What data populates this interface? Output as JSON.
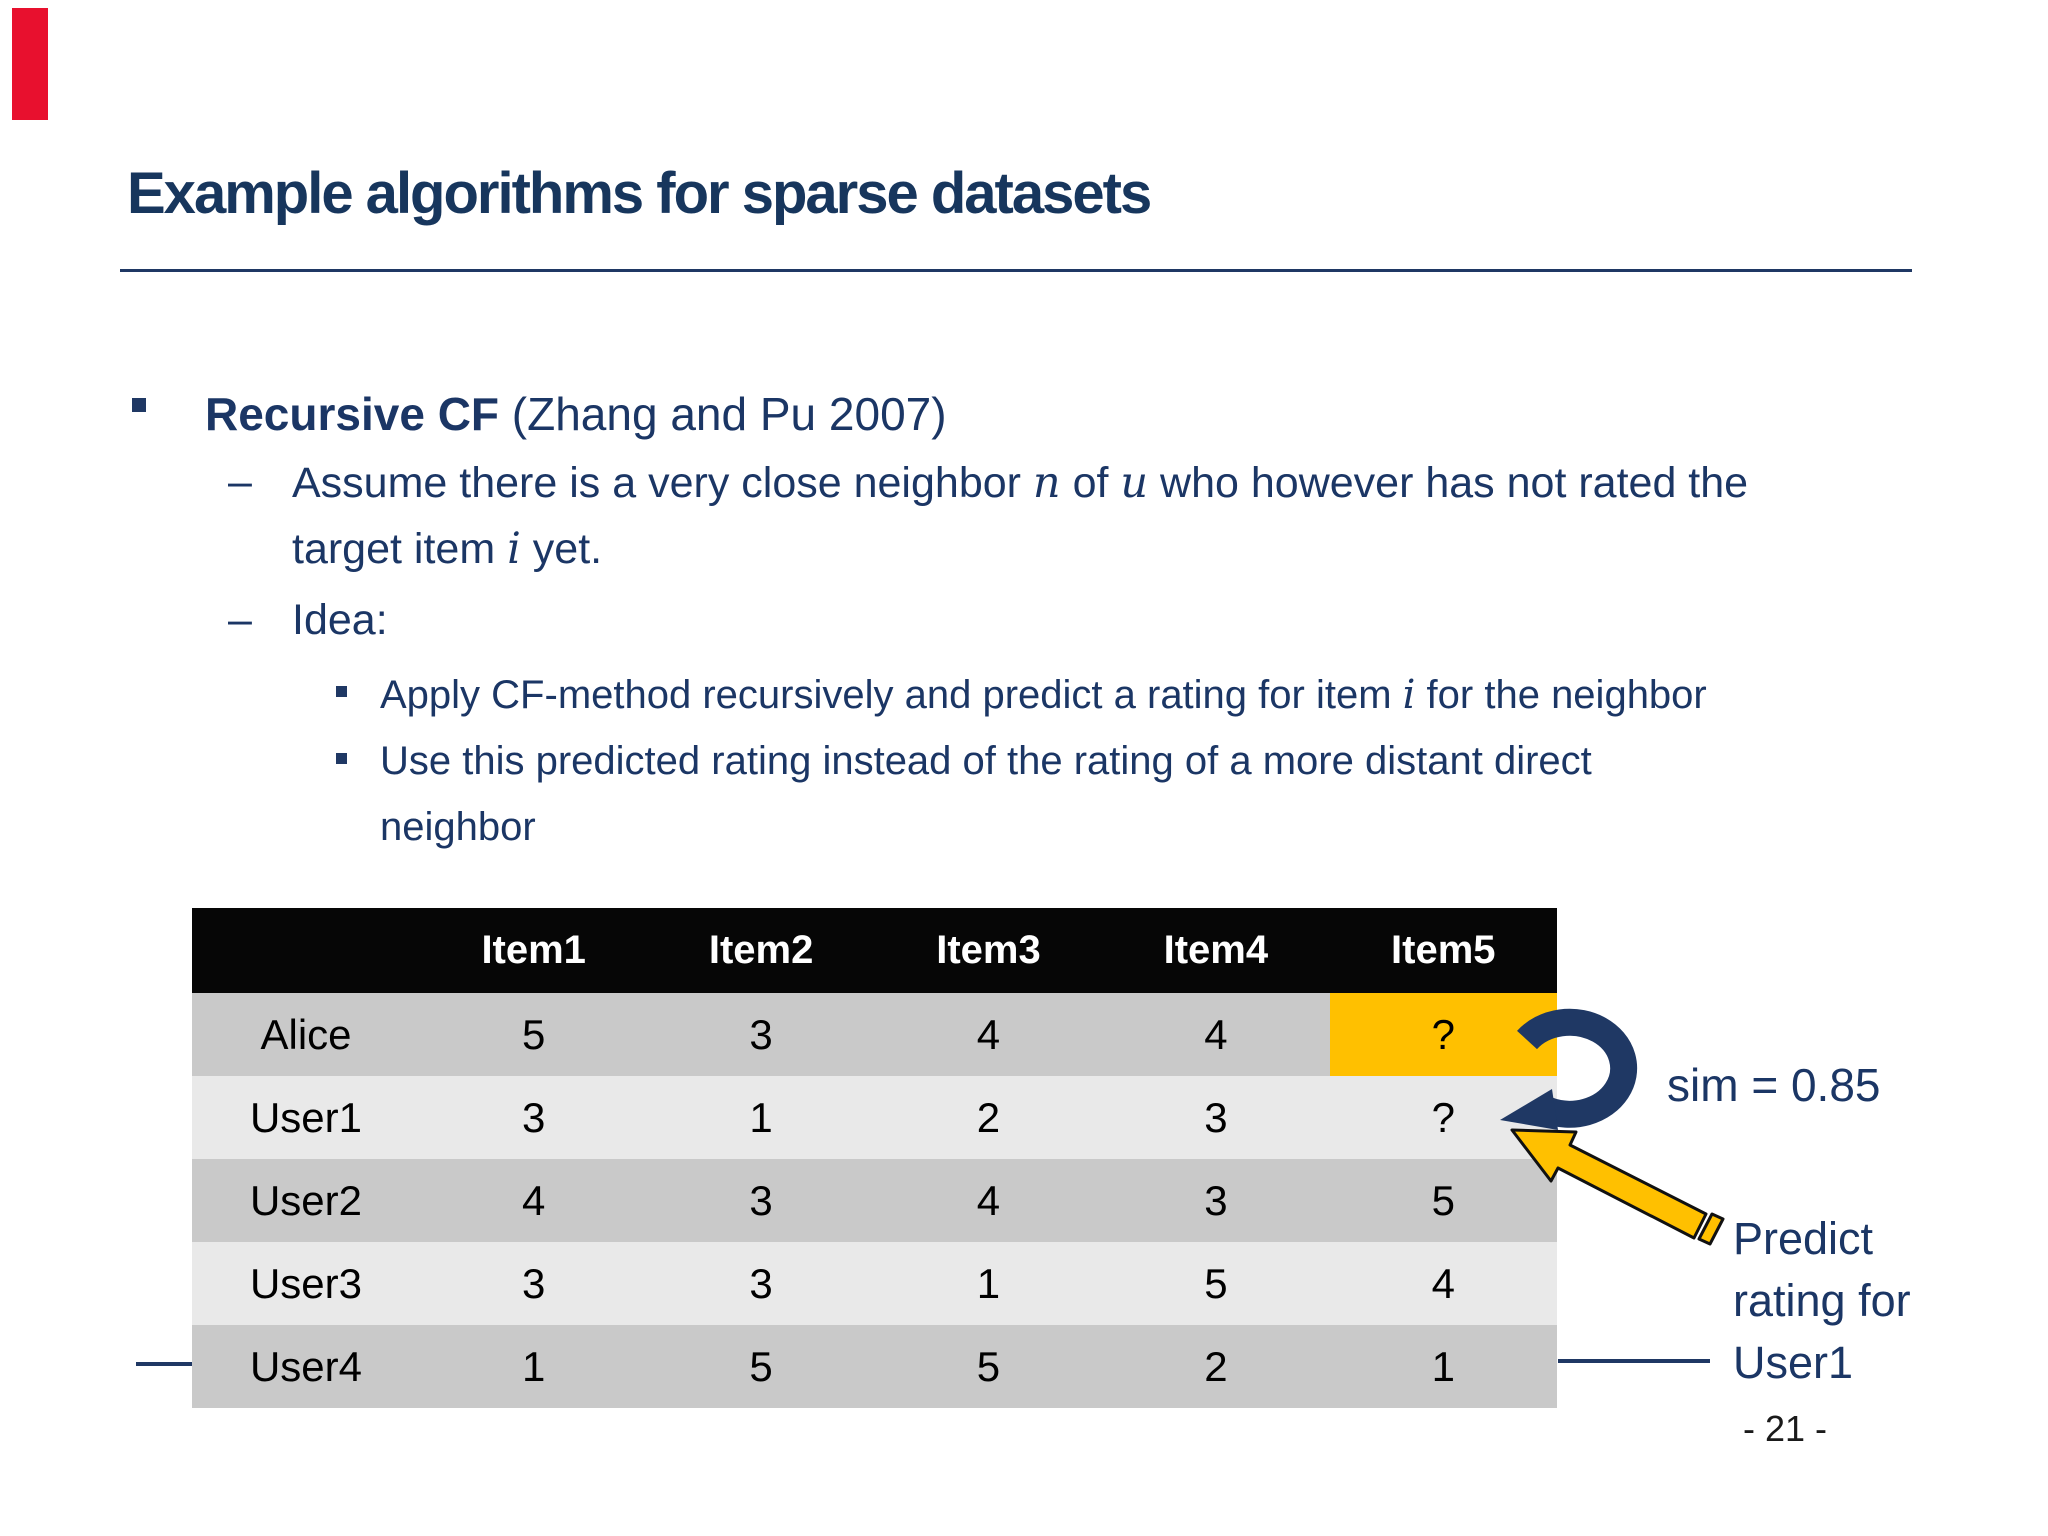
{
  "slide": {
    "title": "Example algorithms for sparse datasets",
    "page_number": "- 21 -"
  },
  "bullets": {
    "recursive_bold": "Recursive CF ",
    "recursive_rest": "(Zhang and Pu 2007)",
    "assume": {
      "dash": "–",
      "s1": "Assume there is a very close neighbor ",
      "v1": "n",
      "s2": " of ",
      "v2": "u",
      "s3": " who however has not rated the",
      "line2_s1": "target item ",
      "line2_v": "i",
      "line2_s2": " yet."
    },
    "idea": {
      "dash": "–",
      "label": "Idea:"
    },
    "apply": {
      "s1": "Apply CF-method recursively and predict a rating for item ",
      "v": "i",
      "s2": " for the neighbor"
    },
    "use": {
      "line1": "Use this predicted rating instead of the rating of a more distant direct",
      "line2": "neighbor"
    }
  },
  "table": {
    "columns": [
      "Item1",
      "Item2",
      "Item3",
      "Item4",
      "Item5"
    ],
    "rows": [
      {
        "label": "Alice",
        "values": [
          "5",
          "3",
          "4",
          "4",
          "?"
        ]
      },
      {
        "label": "User1",
        "values": [
          "3",
          "1",
          "2",
          "3",
          "?"
        ]
      },
      {
        "label": "User2",
        "values": [
          "4",
          "3",
          "4",
          "3",
          "5"
        ]
      },
      {
        "label": "User3",
        "values": [
          "3",
          "3",
          "1",
          "5",
          "4"
        ]
      },
      {
        "label": "User4",
        "values": [
          "1",
          "5",
          "5",
          "2",
          "1"
        ]
      }
    ],
    "highlight": {
      "row_label": "Alice",
      "column": "Item5"
    }
  },
  "annotations": {
    "similarity": "sim = 0.85",
    "predict_line1": "Predict",
    "predict_line2": "rating for",
    "predict_line3": "User1"
  },
  "colors": {
    "accent_navy": "#1f3864",
    "text_navy": "#1b3665",
    "highlight_yellow": "#ffc000",
    "red_marker": "#e8102e",
    "row_dark": "#c9c9c9",
    "row_light": "#e9e9e9",
    "header_black": "#060606"
  }
}
